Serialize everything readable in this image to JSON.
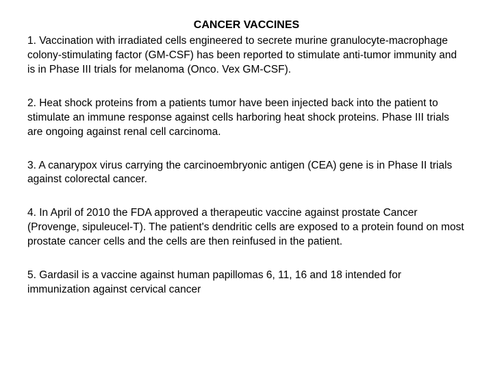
{
  "title": "CANCER VACCINES",
  "items": [
    "1. Vaccination with irradiated cells engineered to secrete murine granulocyte-macrophage colony-stimulating factor (GM-CSF) has been reported to stimulate anti-tumor immunity and is in Phase III trials for melanoma (Onco. Vex GM-CSF).",
    "2. Heat shock proteins from a patients tumor have been injected back into the patient to stimulate an immune response against cells harboring heat shock proteins. Phase III trials are ongoing against renal cell carcinoma.",
    "3. A canarypox virus carrying the carcinoembryonic antigen (CEA) gene is in Phase II trials against colorectal cancer.",
    "4. In April of 2010 the FDA approved a therapeutic vaccine against prostate Cancer (Provenge, sipuleucel-T). The patient's dendritic cells are exposed to a protein found on most prostate cancer cells and the cells are then reinfused in the patient.",
    "5. Gardasil is a vaccine against human papillomas 6, 11, 16 and 18 intended for immunization against cervical cancer"
  ],
  "styles": {
    "background_color": "#ffffff",
    "text_color": "#000000",
    "title_fontsize": 16,
    "body_fontsize": 15.5,
    "font_family": "Arial",
    "line_height": 1.35
  }
}
